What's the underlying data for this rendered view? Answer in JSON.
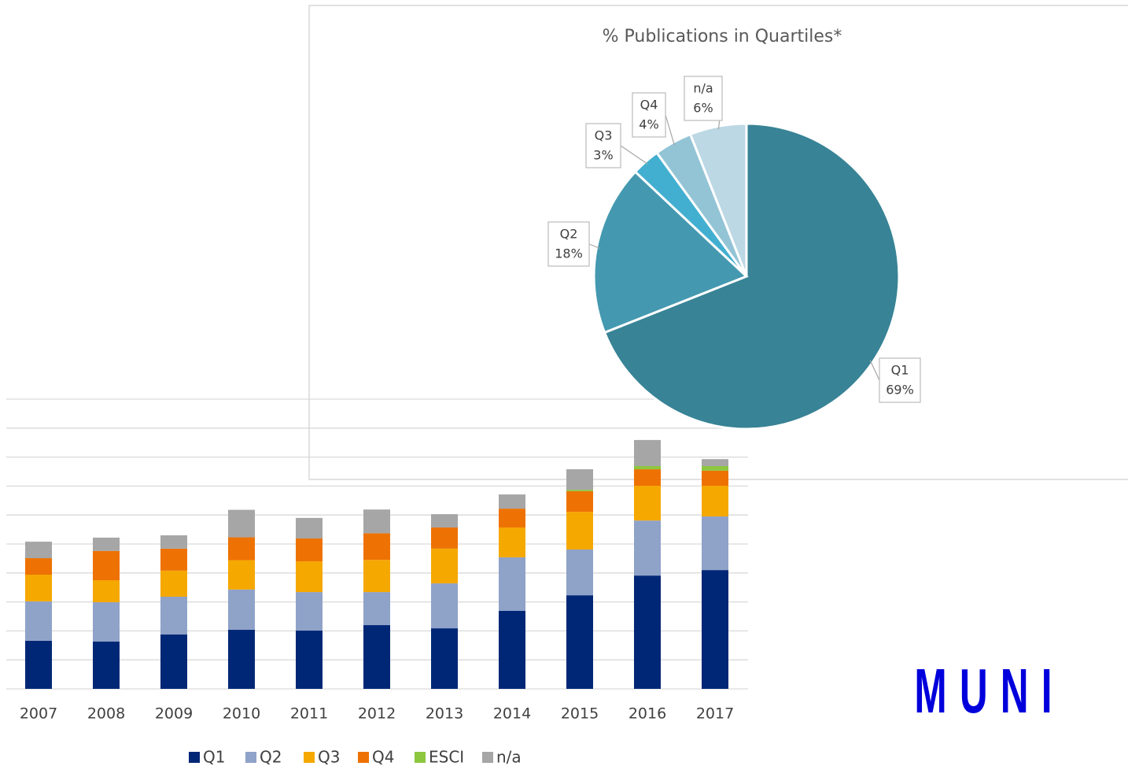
{
  "chart_data": [
    {
      "type": "bar",
      "stacked": true,
      "categories": [
        "2007",
        "2008",
        "2009",
        "2010",
        "2011",
        "2012",
        "2013",
        "2014",
        "2015",
        "2016",
        "2017"
      ],
      "series": [
        {
          "name": "Q1",
          "color": "#002776",
          "values": [
            16.6,
            16.3,
            18.8,
            20.4,
            20.1,
            22.0,
            20.9,
            26.9,
            32.3,
            39.1,
            41.0
          ]
        },
        {
          "name": "Q2",
          "color": "#8fa2c8",
          "values": [
            13.6,
            13.6,
            13.0,
            13.9,
            13.3,
            11.4,
            15.5,
            18.5,
            15.8,
            19.0,
            18.5
          ]
        },
        {
          "name": "Q3",
          "color": "#f5a800",
          "values": [
            9.2,
            7.6,
            9.0,
            10.1,
            10.6,
            11.1,
            12.0,
            10.3,
            13.0,
            12.0,
            10.6
          ]
        },
        {
          "name": "Q4",
          "color": "#ee7203",
          "values": [
            5.7,
            10.1,
            7.6,
            7.9,
            7.9,
            9.2,
            7.3,
            6.5,
            7.1,
            5.7,
            5.2
          ]
        },
        {
          "name": "ESCI",
          "color": "#8dc63f",
          "values": [
            0,
            0,
            0,
            0,
            0,
            0,
            0,
            0,
            0.5,
            1.1,
            1.6
          ]
        },
        {
          "name": "n/a",
          "color": "#a6a6a6",
          "values": [
            5.7,
            4.6,
            4.6,
            9.5,
            7.1,
            8.2,
            4.6,
            4.9,
            7.1,
            9.0,
            2.4
          ]
        }
      ],
      "ylim": [
        0,
        100
      ],
      "yticks": [
        0,
        10,
        20,
        30,
        40,
        50,
        60,
        70,
        80,
        90,
        100
      ],
      "grid": true,
      "legend": "bottom"
    },
    {
      "type": "pie",
      "title": "% Publications in Quartiles*",
      "categories": [
        "Q1",
        "Q2",
        "Q3",
        "Q4",
        "n/a"
      ],
      "values": [
        69,
        18,
        3,
        4,
        6
      ],
      "value_labels": [
        "69%",
        "18%",
        "3%",
        "4%",
        "6%"
      ],
      "colors": [
        "#388396",
        "#4499b0",
        "#42afd0",
        "#93c4d6",
        "#bcd8e4"
      ]
    }
  ],
  "logo": "MUNI"
}
